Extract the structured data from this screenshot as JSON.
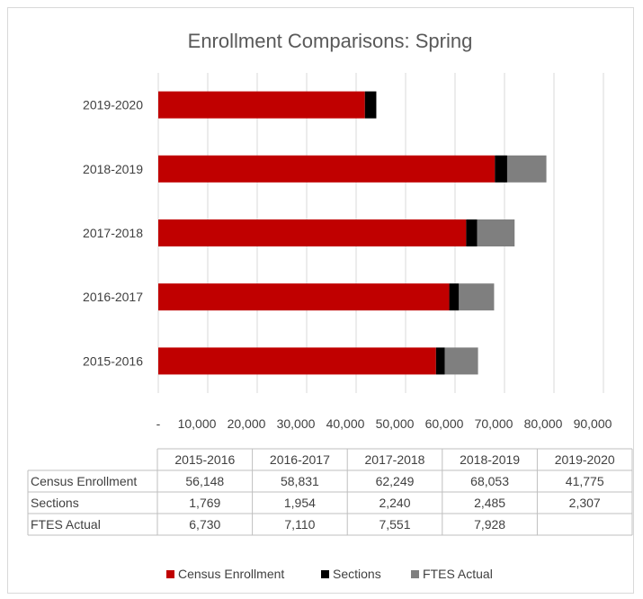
{
  "chart_data": {
    "type": "bar",
    "orientation": "horizontal",
    "stacked": true,
    "title": "Enrollment Comparisons: Spring",
    "categories": [
      "2015-2016",
      "2016-2017",
      "2017-2018",
      "2018-2019",
      "2019-2020"
    ],
    "series": [
      {
        "name": "Census Enrollment",
        "color": "#c00000",
        "values": [
          56148,
          58831,
          62249,
          68053,
          41775
        ],
        "labels": [
          "56,148",
          "58,831",
          "62,249",
          "68,053",
          "41,775"
        ]
      },
      {
        "name": "Sections",
        "color": "#000000",
        "values": [
          1769,
          1954,
          2240,
          2485,
          2307
        ],
        "labels": [
          "1,769",
          "1,954",
          "2,240",
          "2,485",
          "2,307"
        ]
      },
      {
        "name": "FTES Actual",
        "color": "#7f7f7f",
        "values": [
          6730,
          7110,
          7551,
          7928,
          null
        ],
        "labels": [
          "6,730",
          "7,110",
          "7,551",
          "7,928",
          ""
        ]
      }
    ],
    "xlim": [
      0,
      90000
    ],
    "x_ticks": [
      0,
      10000,
      20000,
      30000,
      40000,
      50000,
      60000,
      70000,
      80000,
      90000
    ],
    "x_tick_labels": [
      "-",
      "10,000",
      "20,000",
      "30,000",
      "40,000",
      "50,000",
      "60,000",
      "70,000",
      "80,000",
      "90,000"
    ],
    "grid": true,
    "legend": "bottom",
    "data_table": true
  }
}
